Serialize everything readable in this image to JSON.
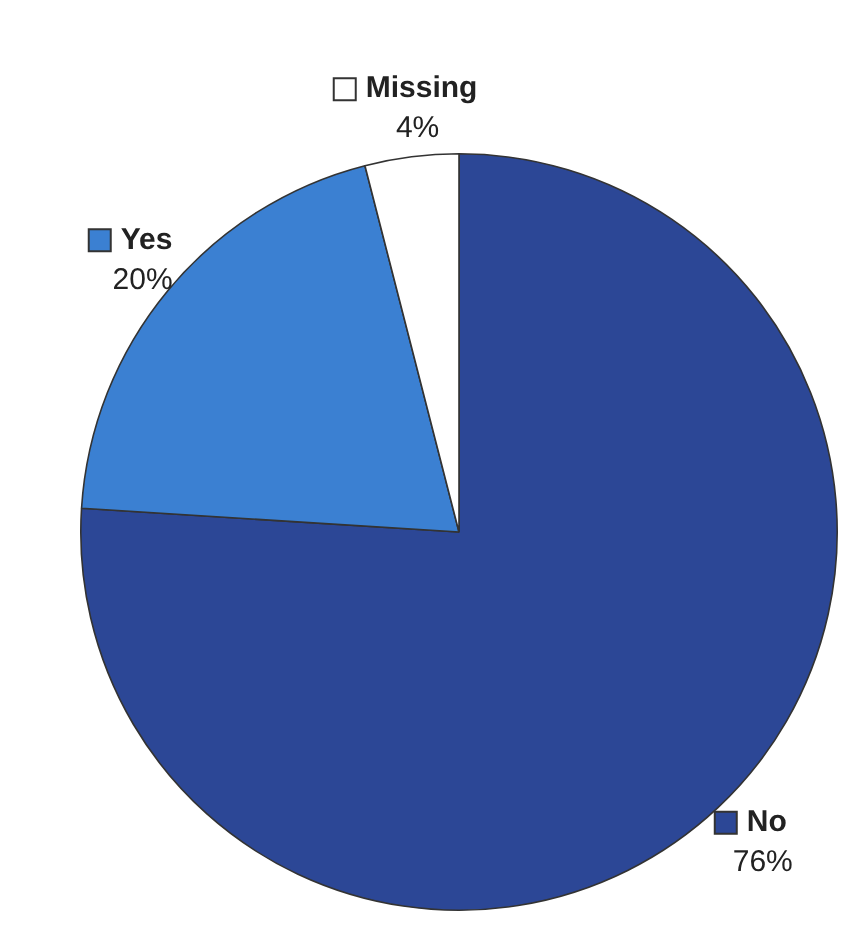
{
  "chart_data": {
    "type": "pie",
    "categories": [
      "No",
      "Yes",
      "Missing"
    ],
    "values": [
      76,
      20,
      4
    ],
    "colors": [
      "#2c4796",
      "#3b80d2",
      "#ffffff"
    ],
    "value_labels": [
      "76%",
      "20%",
      "4%"
    ],
    "legend": "top"
  }
}
